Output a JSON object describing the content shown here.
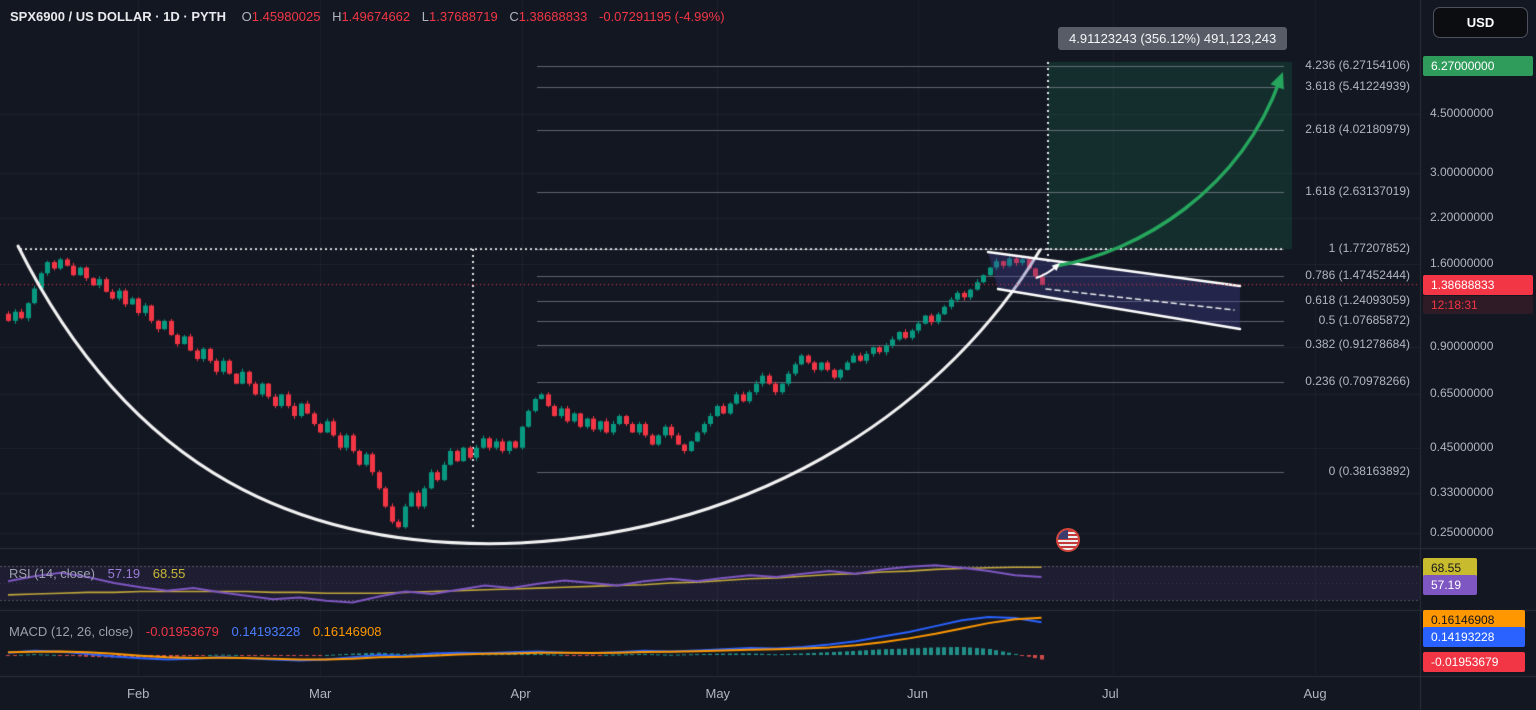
{
  "header": {
    "symbol": "SPX6900 / US DOLLAR · 1D · PYTH",
    "open": "O1.45980025",
    "high": "H1.49674662",
    "low": "L1.37688719",
    "close": "C1.38688833",
    "change": "-0.07291195 (-4.99%)"
  },
  "tooltip": {
    "text": "4.91123243 (356.12%) 491,123,243"
  },
  "price_axis": {
    "currency": "USD",
    "target_badge": "6.27000000",
    "last_badge": "1.38688833",
    "countdown": "12:18:31"
  },
  "rsi": {
    "title": "RSI (14, close)",
    "value": "57.19",
    "ma_value": "68.55"
  },
  "macd": {
    "title": "MACD (12, 26, close)",
    "hist_value": "-0.01953679",
    "macd_value": "0.14193228",
    "signal_value": "0.16146908"
  },
  "colors": {
    "candle_up": "#089981",
    "candle_down": "#f23645",
    "projection_green": "#26a65d",
    "rsi_line": "#7e57c2",
    "rsi_ma_line": "#c2a93a",
    "macd_line": "#2962ff",
    "signal_line": "#ff9800",
    "target_badge_bg": "#2f9c5c",
    "price_badge_bg": "#f23645"
  },
  "chart_data": {
    "type": "candlestick",
    "title": "SPX6900 / US DOLLAR · 1D · PYTH",
    "y_scale": "log",
    "price_ticks": [
      {
        "label": "4.50000000",
        "value": 4.5
      },
      {
        "label": "3.00000000",
        "value": 3.0
      },
      {
        "label": "2.20000000",
        "value": 2.2
      },
      {
        "label": "1.60000000",
        "value": 1.6
      },
      {
        "label": "0.90000000",
        "value": 0.9
      },
      {
        "label": "0.65000000",
        "value": 0.65
      },
      {
        "label": "0.45000000",
        "value": 0.45
      },
      {
        "label": "0.33000000",
        "value": 0.33
      },
      {
        "label": "0.25000000",
        "value": 0.25
      }
    ],
    "x_axis_months": [
      {
        "label": "Feb",
        "index": 20
      },
      {
        "label": "Mar",
        "index": 48
      },
      {
        "label": "Apr",
        "index": 79
      },
      {
        "label": "May",
        "index": 109
      },
      {
        "label": "Jun",
        "index": 140
      },
      {
        "label": "Jul",
        "index": 170
      },
      {
        "label": "Aug",
        "index": 201
      }
    ],
    "candles": {
      "closes": [
        1.08,
        1.15,
        1.1,
        1.22,
        1.35,
        1.5,
        1.62,
        1.55,
        1.65,
        1.58,
        1.48,
        1.56,
        1.45,
        1.38,
        1.44,
        1.32,
        1.26,
        1.33,
        1.21,
        1.26,
        1.14,
        1.2,
        1.08,
        1.02,
        1.08,
        0.98,
        0.92,
        0.97,
        0.88,
        0.83,
        0.89,
        0.82,
        0.76,
        0.82,
        0.75,
        0.7,
        0.76,
        0.7,
        0.65,
        0.7,
        0.64,
        0.6,
        0.65,
        0.6,
        0.56,
        0.61,
        0.57,
        0.53,
        0.5,
        0.54,
        0.49,
        0.45,
        0.49,
        0.44,
        0.4,
        0.43,
        0.38,
        0.34,
        0.3,
        0.27,
        0.26,
        0.3,
        0.33,
        0.3,
        0.34,
        0.38,
        0.36,
        0.4,
        0.44,
        0.41,
        0.45,
        0.42,
        0.45,
        0.48,
        0.45,
        0.47,
        0.44,
        0.47,
        0.45,
        0.52,
        0.58,
        0.63,
        0.65,
        0.6,
        0.56,
        0.59,
        0.54,
        0.57,
        0.52,
        0.55,
        0.51,
        0.54,
        0.5,
        0.53,
        0.56,
        0.53,
        0.5,
        0.53,
        0.49,
        0.46,
        0.49,
        0.52,
        0.49,
        0.46,
        0.44,
        0.47,
        0.5,
        0.53,
        0.56,
        0.6,
        0.57,
        0.61,
        0.65,
        0.62,
        0.66,
        0.7,
        0.74,
        0.7,
        0.66,
        0.7,
        0.75,
        0.8,
        0.85,
        0.81,
        0.77,
        0.81,
        0.77,
        0.73,
        0.77,
        0.81,
        0.85,
        0.82,
        0.86,
        0.9,
        0.87,
        0.91,
        0.95,
        1.0,
        0.96,
        1.01,
        1.06,
        1.12,
        1.07,
        1.13,
        1.19,
        1.25,
        1.31,
        1.27,
        1.34,
        1.41,
        1.48,
        1.56,
        1.63,
        1.58,
        1.66,
        1.61,
        1.65,
        1.55,
        1.47,
        1.387
      ],
      "last_ohlc": {
        "open": 1.45980025,
        "high": 1.49674662,
        "low": 1.37688719,
        "close": 1.38688833
      }
    },
    "fib_extension": {
      "target_price": 6.27,
      "projection_label": "4.91123243 (356.12%) 491,123,243",
      "levels": [
        {
          "ratio": "4.236",
          "price": 6.27154106,
          "label": "4.236 (6.27154106)"
        },
        {
          "ratio": "3.618",
          "price": 5.41224939,
          "label": "3.618 (5.41224939)"
        },
        {
          "ratio": "2.618",
          "price": 4.02180979,
          "label": "2.618 (4.02180979)"
        },
        {
          "ratio": "1.618",
          "price": 2.63137019,
          "label": "1.618 (2.63137019)"
        },
        {
          "ratio": "1",
          "price": 1.77207852,
          "label": "1 (1.77207852)"
        },
        {
          "ratio": "0.786",
          "price": 1.47452444,
          "label": "0.786 (1.47452444)"
        },
        {
          "ratio": "0.618",
          "price": 1.24093059,
          "label": "0.618 (1.24093059)"
        },
        {
          "ratio": "0.5",
          "price": 1.07685872,
          "label": "0.5 (1.07685872)"
        },
        {
          "ratio": "0.382",
          "price": 0.91278684,
          "label": "0.382 (0.91278684)"
        },
        {
          "ratio": "0.236",
          "price": 0.70978266,
          "label": "0.236 (0.70978266)"
        },
        {
          "ratio": "0",
          "price": 0.38163892,
          "label": "0 (0.38163892)"
        }
      ]
    },
    "indicators": {
      "rsi": {
        "current": 57.19,
        "ma_current": 68.55,
        "bands": [
          70,
          30
        ],
        "series": [
          52,
          58,
          62,
          57,
          50,
          45,
          41,
          44,
          39,
          35,
          31,
          33,
          29,
          27,
          34,
          40,
          37,
          42,
          47,
          44,
          49,
          53,
          50,
          47,
          52,
          55,
          52,
          56,
          59,
          57,
          61,
          64,
          61,
          66,
          69,
          71,
          68,
          64,
          59,
          57.19
        ],
        "ma_series": [
          36,
          37,
          38,
          39,
          39,
          40,
          40,
          40,
          40,
          40,
          39,
          39,
          38,
          38,
          38,
          39,
          40,
          41,
          42,
          43,
          44,
          45,
          46,
          47,
          48,
          50,
          51,
          53,
          55,
          56,
          58,
          60,
          61,
          63,
          64,
          66,
          67,
          68,
          68.5,
          68.55
        ]
      },
      "macd": {
        "current": {
          "macd": 0.14193228,
          "signal": 0.16146908,
          "histogram": -0.01953679
        },
        "macd_series": [
          0.01,
          0.018,
          0.014,
          0.004,
          -0.006,
          -0.014,
          -0.02,
          -0.016,
          -0.01,
          -0.014,
          -0.02,
          -0.024,
          -0.02,
          -0.01,
          0.0,
          -0.004,
          0.006,
          0.01,
          0.008,
          0.012,
          0.015,
          0.01,
          0.008,
          0.012,
          0.018,
          0.015,
          0.02,
          0.025,
          0.03,
          0.028,
          0.035,
          0.045,
          0.06,
          0.08,
          0.1,
          0.125,
          0.15,
          0.165,
          0.16,
          0.14193228
        ],
        "signal_series": [
          0.012,
          0.014,
          0.015,
          0.012,
          0.005,
          -0.003,
          -0.01,
          -0.013,
          -0.012,
          -0.013,
          -0.016,
          -0.02,
          -0.02,
          -0.016,
          -0.01,
          -0.008,
          -0.003,
          0.002,
          0.005,
          0.007,
          0.01,
          0.01,
          0.009,
          0.01,
          0.013,
          0.014,
          0.016,
          0.019,
          0.023,
          0.025,
          0.028,
          0.033,
          0.042,
          0.055,
          0.072,
          0.092,
          0.115,
          0.138,
          0.155,
          0.16146908
        ]
      }
    }
  }
}
